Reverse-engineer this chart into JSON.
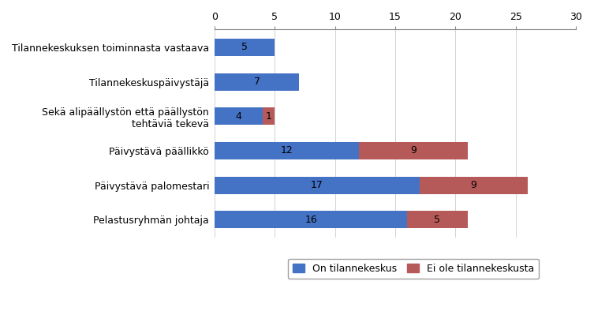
{
  "categories": [
    "Pelastusryhmän johtaja",
    "Päivystävä palomestari",
    "Päivystävä päällikkö",
    "Sekä alipäällystön että päällystön\ntehtäviä tekevä",
    "Tilannekeskuspäivystäjä",
    "Tilannekeskuksen toiminnasta vastaava"
  ],
  "blue_values": [
    16,
    17,
    12,
    4,
    7,
    5
  ],
  "red_values": [
    5,
    9,
    9,
    1,
    0,
    0
  ],
  "blue_color": "#4472C4",
  "red_color": "#B55A58",
  "legend_blue": "On tilannekeskus",
  "legend_red": "Ei ole tilannekeskusta",
  "xlim": [
    0,
    30
  ],
  "xticks": [
    0,
    5,
    10,
    15,
    20,
    25,
    30
  ],
  "bar_height": 0.5,
  "figsize": [
    7.53,
    4.13
  ],
  "dpi": 100,
  "background_color": "#FFFFFF",
  "label_fontsize": 9,
  "tick_fontsize": 9,
  "legend_fontsize": 9
}
